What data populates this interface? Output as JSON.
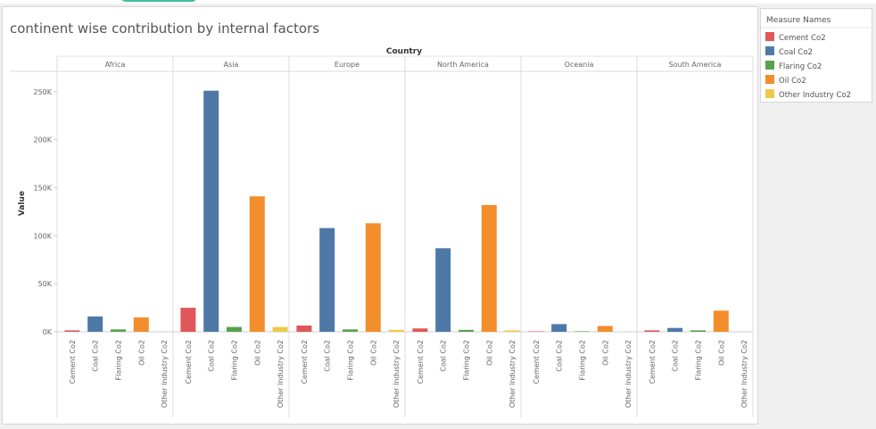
{
  "chart_data": {
    "type": "bar",
    "title": "continent wise contribution by internal factors",
    "column_header": "Country",
    "ylabel": "Value",
    "ylim": [
      0,
      260000
    ],
    "yticks": [
      0,
      50000,
      100000,
      150000,
      200000,
      250000
    ],
    "ytick_labels": [
      "0K",
      "50K",
      "100K",
      "150K",
      "200K",
      "250K"
    ],
    "grid": false,
    "legend_title": "Measure Names",
    "legend_position": "top-right",
    "categories": [
      "Africa",
      "Asia",
      "Europe",
      "North America",
      "Oceania",
      "South America"
    ],
    "measures": [
      "Cement Co2",
      "Coal Co2",
      "Flaring Co2",
      "Oil Co2",
      "Other Industry Co2"
    ],
    "series": [
      {
        "name": "Cement Co2",
        "color": "#e15759",
        "values": [
          1500,
          25000,
          6500,
          3500,
          500,
          1500
        ]
      },
      {
        "name": "Coal Co2",
        "color": "#4e79a7",
        "values": [
          16000,
          251000,
          108000,
          87000,
          8000,
          4000
        ]
      },
      {
        "name": "Flaring Co2",
        "color": "#59a14f",
        "values": [
          2500,
          5000,
          2500,
          2000,
          500,
          1500
        ]
      },
      {
        "name": "Oil Co2",
        "color": "#f28e2b",
        "values": [
          15000,
          141000,
          113000,
          132000,
          6000,
          22000
        ]
      },
      {
        "name": "Other Industry Co2",
        "color": "#edc948",
        "values": [
          0,
          5000,
          2000,
          1500,
          0,
          0
        ]
      }
    ]
  }
}
